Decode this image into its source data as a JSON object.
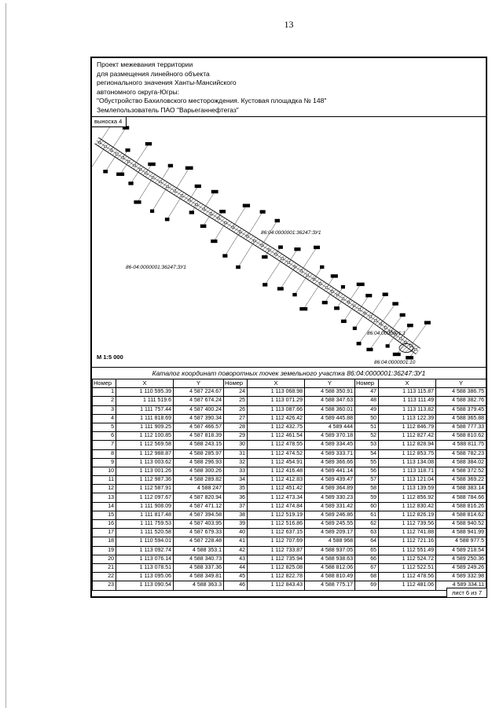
{
  "page": {
    "number": "13"
  },
  "header": {
    "lines": [
      "Проект межевания территории",
      "для размещения линейного объекта",
      "регионального значения Ханты-Мансийского",
      "автономного округа-Югры:",
      "\"Обустройство Бахиловского месторождения. Кустовая площадка № 148\"",
      "Землепользователь ПАО \"Варьеганнефтегаз\""
    ]
  },
  "map": {
    "callout": "выноска 4",
    "scale": "М 1:5 000",
    "parcel_label_1": "86:04:0000001:36247:ЗУ1",
    "parcel_label_2": "86-04:0000001:36247:ЗУ1",
    "adjacent_label_1": "86:04:0000001:1",
    "adjacent_label_2": "86:04:0000001:10"
  },
  "table": {
    "title": "Каталог координат поворотных точек земельного участка 86:04:0000001:36247:ЗУ1",
    "headers": [
      "Номер",
      "X",
      "Y"
    ],
    "rows": [
      [
        "1",
        "1 110 595.39",
        "4 587 224.67",
        "24",
        "1 113 068.98",
        "4 588 350.91",
        "47",
        "1 113 115.87",
        "4 588 386.75"
      ],
      [
        "2",
        "1 111 519.6",
        "4 587 674.24",
        "25",
        "1 113 071.29",
        "4 588 347.63",
        "48",
        "1 113 111.49",
        "4 588 382.76"
      ],
      [
        "3",
        "1 111 757.44",
        "4 587 400.24",
        "26",
        "1 113 087.66",
        "4 588 360.01",
        "49",
        "1 113 113.82",
        "4 588 379.45"
      ],
      [
        "4",
        "1 111 818.69",
        "4 587 390.34",
        "27",
        "1 112 426.42",
        "4 589 445.88",
        "50",
        "1 113 122.39",
        "4 588 365.88"
      ],
      [
        "5",
        "1 111 909.25",
        "4 587 466.57",
        "28",
        "1 112 432.75",
        "4 589 444",
        "51",
        "1 112 846.79",
        "4 588 777.33"
      ],
      [
        "6",
        "1 112 100.85",
        "4 587 818.39",
        "29",
        "1 112 461.54",
        "4 589 370.18",
        "52",
        "1 112 827.42",
        "4 588 810.62"
      ],
      [
        "7",
        "1 112 569.58",
        "4 588 243.15",
        "30",
        "1 112 478.55",
        "4 589 334.45",
        "53",
        "1 112 828.94",
        "4 588 811.75"
      ],
      [
        "8",
        "1 112 988.87",
        "4 588 285.97",
        "31",
        "1 112 474.52",
        "4 589 333.71",
        "54",
        "1 112 853.75",
        "4 588 782.23"
      ],
      [
        "9",
        "1 113 003.62",
        "4 588 296.93",
        "32",
        "1 112 454.91",
        "4 589 366.66",
        "55",
        "1 113 134.08",
        "4 588 384.02"
      ],
      [
        "10",
        "1 113 001.26",
        "4 588 300.26",
        "33",
        "1 112 416.48",
        "4 589 441.14",
        "56",
        "1 113 118.71",
        "4 588 372.52"
      ],
      [
        "11",
        "1 112 987.36",
        "4 588 289.82",
        "34",
        "1 112 412.83",
        "4 589 439.47",
        "57",
        "1 113 121.04",
        "4 588 369.22"
      ],
      [
        "12",
        "1 112 587.91",
        "4 588 247",
        "35",
        "1 112 451.42",
        "4 589 364.89",
        "58",
        "1 113 139.59",
        "4 588 383.14"
      ],
      [
        "13",
        "1 112 097.67",
        "4 587 820.94",
        "36",
        "1 112 473.34",
        "4 589 330.23",
        "59",
        "1 112 856.92",
        "4 588 784.66"
      ],
      [
        "14",
        "1 111 908.09",
        "4 587 471.12",
        "37",
        "1 112 474.84",
        "4 589 331.42",
        "60",
        "1 112 830.42",
        "4 588 816.26"
      ],
      [
        "15",
        "1 111 817.48",
        "4 587 394.58",
        "38",
        "1 112 519.19",
        "4 589 246.86",
        "61",
        "1 112 826.19",
        "4 588 814.62"
      ],
      [
        "16",
        "1 111 759.53",
        "4 587 403.95",
        "39",
        "1 112 516.86",
        "4 589 245.55",
        "62",
        "1 112 739.56",
        "4 588 940.52"
      ],
      [
        "17",
        "1 111 520.58",
        "4 587 679.33",
        "40",
        "1 112 637.15",
        "4 589 209.17",
        "63",
        "1 112 741.88",
        "4 588 941.99"
      ],
      [
        "18",
        "1 110 594.01",
        "4 587 228.48",
        "41",
        "1 112 707.69",
        "4 588 968",
        "64",
        "1 112 721.16",
        "4 588 977.5"
      ],
      [
        "19",
        "1 113 092.74",
        "4 588 353.1",
        "42",
        "1 112 733.87",
        "4 588 937.05",
        "65",
        "1 112 551.49",
        "4 589 218.54"
      ],
      [
        "20",
        "1 113 076.14",
        "4 588 340.73",
        "43",
        "1 112 735.94",
        "4 588 938.63",
        "66",
        "1 112 524.72",
        "4 589 250.36"
      ],
      [
        "21",
        "1 113 078.51",
        "4 588 337.36",
        "44",
        "1 112 825.08",
        "4 588 812.06",
        "67",
        "1 112 522.51",
        "4 589 249.26"
      ],
      [
        "22",
        "1 113 095.06",
        "4 588 349.81",
        "45",
        "1 112 822.78",
        "4 588 810.49",
        "68",
        "1 112 478.56",
        "4 589 332.98"
      ],
      [
        "23",
        "1 113 090.54",
        "4 588 363.3",
        "46",
        "1 112 843.43",
        "4 588 775.17",
        "69",
        "1 112 481.06",
        "4 589 334.11"
      ]
    ]
  },
  "footer": {
    "sheet": "лист 6 из 7"
  }
}
